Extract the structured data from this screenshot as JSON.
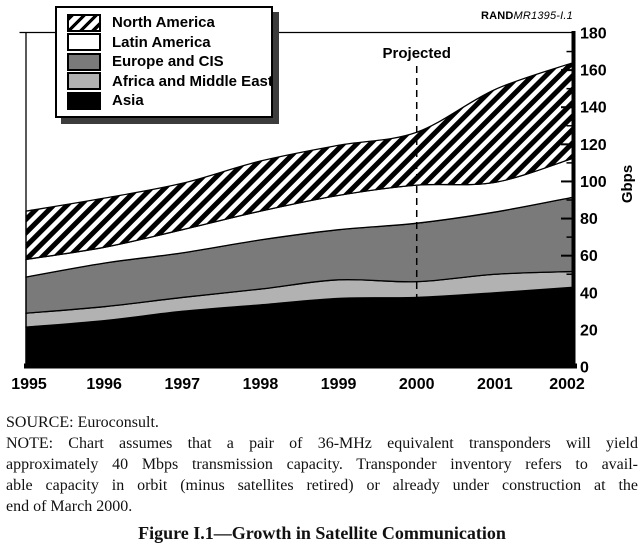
{
  "figure": {
    "rand_label_bold": "RAND",
    "rand_label_italic": "MR1395-I.1",
    "projected_label": "Projected",
    "y_axis_label": "Gbps",
    "colors": {
      "asia": "#000000",
      "africa_middle_east": "#b2b2b2",
      "europe_cis": "#7a7a7a",
      "latin_america": "#ffffff",
      "north_america_pattern": "black-white-diagonal-hatch",
      "legend_shadow": "#3c3c3c",
      "axis": "#000000"
    }
  },
  "chart_data": {
    "type": "area",
    "stacked": true,
    "title": "",
    "xlabel": "",
    "ylabel": "Gbps",
    "ylim": [
      0,
      180
    ],
    "y_ticks": [
      0,
      20,
      40,
      60,
      80,
      100,
      120,
      140,
      160,
      180
    ],
    "y_minor_tick_step": 10,
    "grid": false,
    "legend_position": "top-left-box",
    "x": [
      1995,
      1996,
      1997,
      1998,
      1999,
      2000,
      2001,
      2002
    ],
    "x_tick_labels": [
      "1995",
      "1996",
      "1997",
      "1998",
      "1999",
      "2000",
      "2001",
      "2002"
    ],
    "projected_x": 2000,
    "projected_annotation": "Projected",
    "series": [
      {
        "name": "Asia",
        "fill": "#000000",
        "values": [
          21.5,
          25,
          30,
          33.5,
          37,
          37.5,
          40,
          43
        ]
      },
      {
        "name": "Africa and Middle East",
        "fill": "#b2b2b2",
        "values": [
          7.5,
          7.5,
          7.5,
          8.5,
          10,
          8.5,
          10,
          8.5
        ]
      },
      {
        "name": "Europe and CIS",
        "fill": "#7a7a7a",
        "values": [
          19.5,
          23.5,
          24,
          26.5,
          27,
          31.5,
          33.5,
          40
        ]
      },
      {
        "name": "Latin America",
        "fill": "#ffffff",
        "values": [
          9.5,
          8.5,
          12.5,
          15.5,
          18.5,
          20.5,
          16,
          21
        ]
      },
      {
        "name": "North America",
        "fill": "hatch",
        "values": [
          26,
          26.5,
          25,
          27,
          27,
          28.5,
          50,
          51.5
        ]
      }
    ],
    "totals": [
      84,
      91,
      99,
      111,
      119.5,
      126.5,
      149.5,
      164
    ],
    "legend_order_top_to_bottom": [
      "North America",
      "Latin America",
      "Europe and CIS",
      "Africa and Middle East",
      "Asia"
    ]
  },
  "notes": {
    "source": "SOURCE:  Euroconsult.",
    "note_lines": [
      "NOTE:  Chart assumes that a pair of 36-MHz equivalent transponders will yield",
      "approximately 40 Mbps transmission capacity.  Transponder inventory refers to avail-",
      "able capacity in orbit (minus satellites retired) or already under construction at the",
      "end of March 2000."
    ]
  },
  "caption": "Figure I.1—Growth in Satellite Communication"
}
